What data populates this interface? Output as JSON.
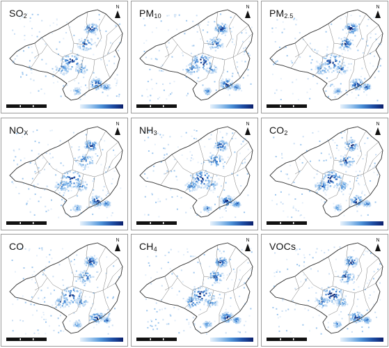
{
  "panels": [
    {
      "base": "SO",
      "sub": "2",
      "icon": "north-arrow-icon"
    },
    {
      "base": "PM",
      "sub": "10",
      "icon": "north-arrow-icon"
    },
    {
      "base": "PM",
      "sub": "2.5",
      "icon": "north-arrow-icon"
    },
    {
      "base": "NO",
      "sub": "X",
      "icon": "north-arrow-icon"
    },
    {
      "base": "NH",
      "sub": "3",
      "icon": "north-arrow-icon"
    },
    {
      "base": "CO",
      "sub": "2",
      "icon": "north-arrow-icon"
    },
    {
      "base": "CO",
      "sub": "",
      "icon": "north-arrow-icon"
    },
    {
      "base": "CH",
      "sub": "4",
      "icon": "north-arrow-icon"
    },
    {
      "base": "VOCs",
      "sub": "",
      "icon": "north-arrow-icon"
    }
  ],
  "north_label": "N",
  "colors": {
    "low": "#e6f1fb",
    "mid": "#4a8fd6",
    "high": "#0b1f6b",
    "boundary": "#3a3a3a",
    "frame": "#9a9a9a"
  }
}
